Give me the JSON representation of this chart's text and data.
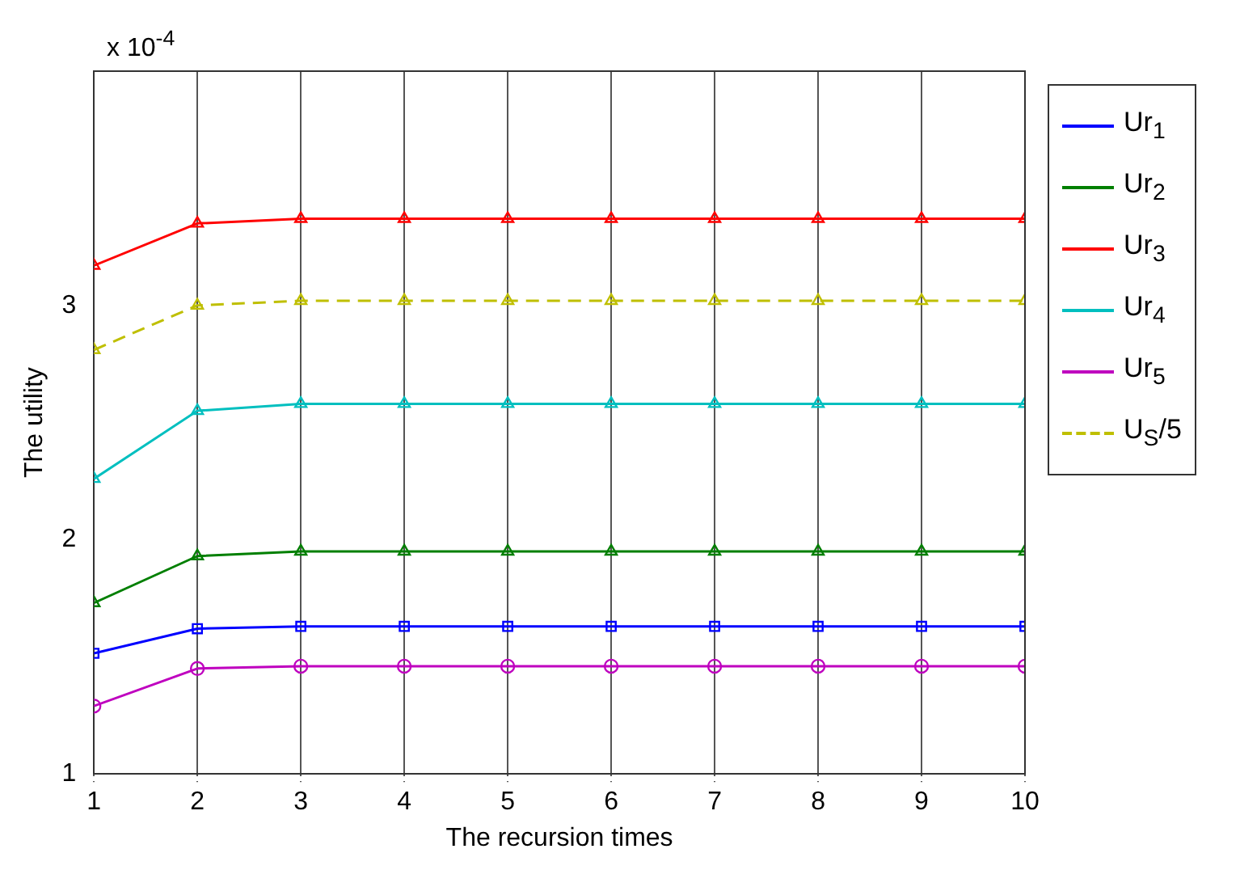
{
  "chart_data": {
    "type": "line",
    "xlabel": "The recursion times",
    "ylabel": "The utility",
    "annotations": [
      "x 10$^{-4}$"
    ],
    "x": [
      1,
      2,
      3,
      4,
      5,
      6,
      7,
      8,
      9,
      10
    ],
    "xlim": [
      1,
      10
    ],
    "xticks": [
      1,
      2,
      3,
      4,
      5,
      6,
      7,
      8,
      9,
      10
    ],
    "ylim": [
      1,
      4
    ],
    "yticks": [
      1,
      2,
      3
    ],
    "grid": "x",
    "legend": "right",
    "series": [
      {
        "name": "Ur$_{1}$",
        "color": "#0000ff",
        "marker": "square",
        "values": [
          1.515,
          1.62,
          1.63,
          1.63,
          1.63,
          1.63,
          1.63,
          1.63,
          1.63,
          1.63
        ]
      },
      {
        "name": "Ur$_{2}$",
        "color": "#007f00",
        "marker": "triangle",
        "values": [
          1.73,
          1.93,
          1.95,
          1.95,
          1.95,
          1.95,
          1.95,
          1.95,
          1.95,
          1.95
        ]
      },
      {
        "name": "Ur$_{3}$",
        "color": "#ff0000",
        "marker": "triangle",
        "values": [
          3.17,
          3.35,
          3.37,
          3.37,
          3.37,
          3.37,
          3.37,
          3.37,
          3.37,
          3.37
        ]
      },
      {
        "name": "Ur$_{4}$",
        "color": "#00bfbf",
        "marker": "triangle",
        "values": [
          2.26,
          2.55,
          2.58,
          2.58,
          2.58,
          2.58,
          2.58,
          2.58,
          2.58,
          2.58
        ]
      },
      {
        "name": "Ur$_{5}$",
        "color": "#bf00bf",
        "marker": "circle",
        "values": [
          1.29,
          1.45,
          1.46,
          1.46,
          1.46,
          1.46,
          1.46,
          1.46,
          1.46,
          1.46
        ]
      },
      {
        "name": "U$_{S}$/5",
        "color": "#bfbf00",
        "marker": "triangle",
        "line_style": "dashed",
        "values": [
          2.81,
          3.0,
          3.02,
          3.02,
          3.02,
          3.02,
          3.02,
          3.02,
          3.02,
          3.02
        ]
      }
    ]
  }
}
